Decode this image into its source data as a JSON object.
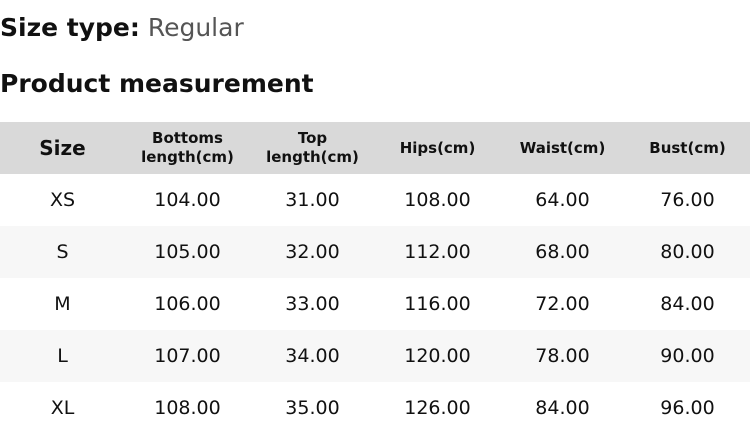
{
  "size_type": {
    "label": "Size type:",
    "value": "Regular"
  },
  "section_title": "Product measurement",
  "table": {
    "headers": [
      "Size",
      "Bottoms length(cm)",
      "Top length(cm)",
      "Hips(cm)",
      "Waist(cm)",
      "Bust(cm)"
    ],
    "rows": [
      [
        "XS",
        "104.00",
        "31.00",
        "108.00",
        "64.00",
        "76.00"
      ],
      [
        "S",
        "105.00",
        "32.00",
        "112.00",
        "68.00",
        "80.00"
      ],
      [
        "M",
        "106.00",
        "33.00",
        "116.00",
        "72.00",
        "84.00"
      ],
      [
        "L",
        "107.00",
        "34.00",
        "120.00",
        "78.00",
        "90.00"
      ],
      [
        "XL",
        "108.00",
        "35.00",
        "126.00",
        "84.00",
        "96.00"
      ]
    ]
  },
  "colors": {
    "header_bg": "#d9d9d9",
    "stripe_bg": "#f7f7f7",
    "value_text": "#555555"
  }
}
